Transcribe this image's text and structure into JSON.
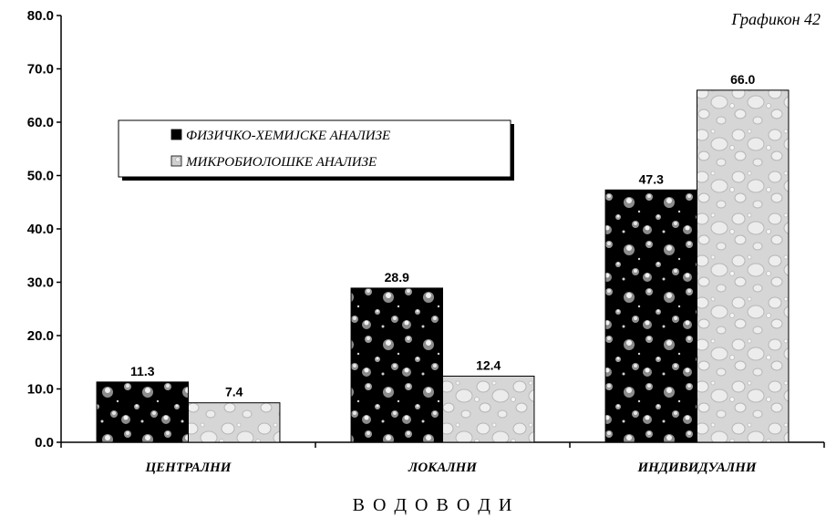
{
  "chart_data": {
    "type": "bar",
    "title": "Графикон 42",
    "xlabel": "В О Д О В О Д И",
    "ylabel": "",
    "ylim": [
      0,
      80
    ],
    "yticks": [
      "0.0",
      "10.0",
      "20.0",
      "30.0",
      "40.0",
      "50.0",
      "60.0",
      "70.0",
      "80.0"
    ],
    "categories": [
      "ЦЕНТРАЛНИ",
      "ЛОКАЛНИ",
      "ИНДИВИДУАЛНИ"
    ],
    "series": [
      {
        "name": "ФИЗИЧКО-ХЕМИЈСКЕ АНАЛИЗЕ",
        "values": [
          11.3,
          28.9,
          47.3
        ],
        "labels": [
          "11.3",
          "28.9",
          "47.3"
        ],
        "color": "#000000"
      },
      {
        "name": "МИКРОБИОЛОШКЕ АНАЛИЗЕ",
        "values": [
          7.4,
          12.4,
          66.0
        ],
        "labels": [
          "7.4",
          "12.4",
          "66.0"
        ],
        "color": "#d4d4d4"
      }
    ],
    "legend": "upper-left",
    "grid": false
  }
}
